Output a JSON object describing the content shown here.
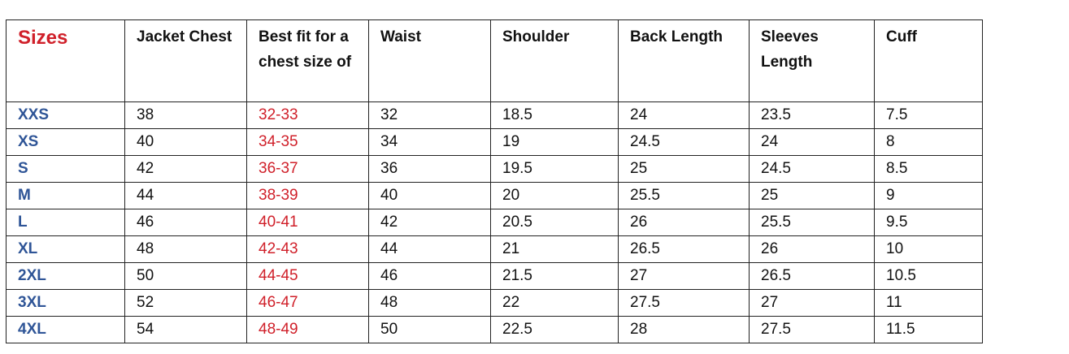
{
  "colors": {
    "sizes_header": "#d0202a",
    "size_labels": "#2f5597",
    "best_fit_values": "#d0202a"
  },
  "headers": [
    "Sizes",
    "Jacket Chest",
    "Best fit for a chest size of",
    "Waist",
    "Shoulder",
    "Back Length",
    "Sleeves Length",
    "Cuff"
  ],
  "rows": [
    [
      "XXS",
      "38",
      "32-33",
      "32",
      "18.5",
      "24",
      "23.5",
      "7.5"
    ],
    [
      "XS",
      "40",
      "34-35",
      "34",
      "19",
      "24.5",
      "24",
      "8"
    ],
    [
      "S",
      "42",
      "36-37",
      "36",
      "19.5",
      "25",
      "24.5",
      "8.5"
    ],
    [
      "M",
      "44",
      "38-39",
      "40",
      "20",
      "25.5",
      "25",
      "9"
    ],
    [
      "L",
      "46",
      "40-41",
      "42",
      "20.5",
      "26",
      "25.5",
      "9.5"
    ],
    [
      "XL",
      "48",
      "42-43",
      "44",
      "21",
      "26.5",
      "26",
      "10"
    ],
    [
      "2XL",
      "50",
      "44-45",
      "46",
      "21.5",
      "27",
      "26.5",
      "10.5"
    ],
    [
      "3XL",
      "52",
      "46-47",
      "48",
      "22",
      "27.5",
      "27",
      "11"
    ],
    [
      "4XL",
      "54",
      "48-49",
      "50",
      "22.5",
      "28",
      "27.5",
      "11.5"
    ]
  ]
}
